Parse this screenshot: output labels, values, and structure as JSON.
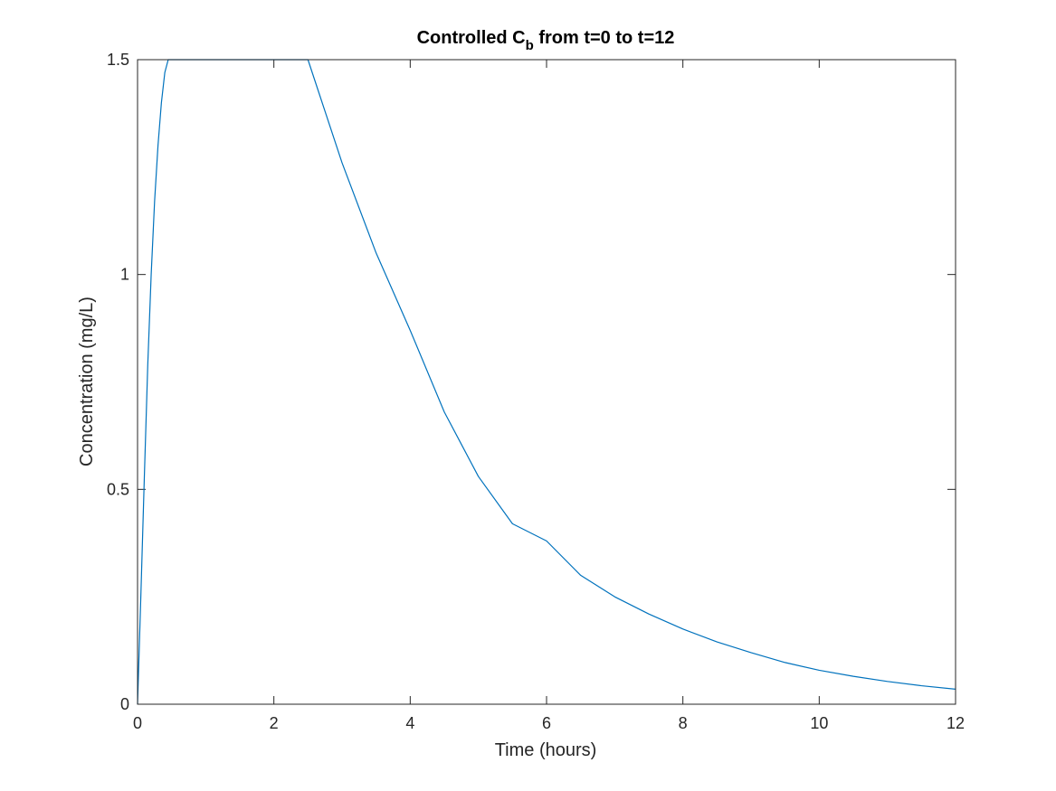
{
  "chart_data": {
    "type": "line",
    "title_main": "Controlled C",
    "title_sub": "b",
    "title_rest": " from t=0 to t=12",
    "xlabel": "Time (hours)",
    "ylabel": "Concentration (mg/L)",
    "xlim": [
      0,
      12
    ],
    "ylim": [
      0,
      1.5
    ],
    "xticks": [
      0,
      2,
      4,
      6,
      8,
      10,
      12
    ],
    "xtick_labels": [
      "0",
      "2",
      "4",
      "6",
      "8",
      "10",
      "12"
    ],
    "yticks": [
      0,
      0.5,
      1,
      1.5
    ],
    "ytick_labels": [
      "0",
      "0.5",
      "1",
      "1.5"
    ],
    "grid": false,
    "line_color": "#0072BD",
    "series": [
      {
        "x": [
          0,
          0.05,
          0.1,
          0.15,
          0.2,
          0.25,
          0.3,
          0.35,
          0.4,
          0.45,
          2.5,
          3,
          3.5,
          4,
          4.5,
          5,
          5.5,
          6,
          6.5,
          7,
          7.5,
          8,
          8.5,
          9,
          9.5,
          10,
          10.5,
          11,
          11.5,
          12
        ],
        "y": [
          0,
          0.26,
          0.53,
          0.79,
          1.0,
          1.17,
          1.3,
          1.4,
          1.47,
          1.5,
          1.5,
          1.26,
          1.05,
          0.87,
          0.68,
          0.53,
          0.42,
          0.38,
          0.3,
          0.25,
          0.21,
          0.175,
          0.145,
          0.12,
          0.097,
          0.079,
          0.065,
          0.053,
          0.043,
          0.035
        ]
      }
    ]
  }
}
